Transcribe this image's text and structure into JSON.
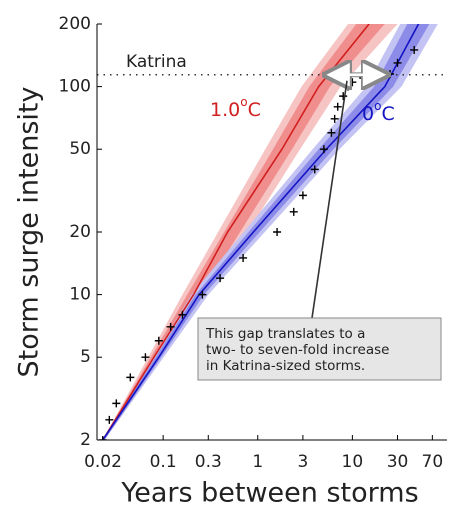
{
  "chart_data": {
    "type": "line",
    "xlabel": "Years between storms",
    "ylabel": "Storm surge intensity",
    "xscale": "log",
    "yscale": "log",
    "xlim": [
      0.02,
      100
    ],
    "ylim": [
      2,
      200
    ],
    "xticks": [
      0.02,
      0.1,
      0.3,
      1,
      3,
      10,
      30,
      70
    ],
    "yticks": [
      2,
      5,
      10,
      20,
      50,
      100,
      200
    ],
    "series": [
      {
        "label_parts": [
          "1.0",
          "o",
          "C"
        ],
        "color": "#d21f1f",
        "y": [
          2,
          3,
          5,
          10,
          20,
          50,
          100,
          200
        ],
        "x": [
          0.023,
          0.04,
          0.08,
          0.21,
          0.48,
          1.8,
          4.4,
          15
        ]
      },
      {
        "label_parts": [
          "0",
          "o",
          "C"
        ],
        "color": "#1414c4",
        "y": [
          2,
          3,
          5,
          10,
          20,
          50,
          100,
          200
        ],
        "x": [
          0.023,
          0.042,
          0.09,
          0.24,
          0.9,
          5.3,
          22,
          50
        ]
      }
    ],
    "bands": [
      {
        "color": "#f7c4c4",
        "y": [
          2,
          10,
          50,
          100,
          200
        ],
        "x_lower": [
          0.023,
          0.16,
          1.2,
          2.9,
          9
        ],
        "x_upper": [
          0.024,
          0.3,
          2.8,
          7.5,
          30
        ]
      },
      {
        "color": "#f08e8e",
        "y": [
          2,
          10,
          50,
          100,
          200
        ],
        "x_lower": [
          0.023,
          0.18,
          1.45,
          3.5,
          11
        ],
        "x_upper": [
          0.024,
          0.25,
          2.3,
          5.8,
          22
        ]
      },
      {
        "color": "#c4c4f4",
        "y": [
          2,
          10,
          50,
          100,
          200
        ],
        "x_lower": [
          0.023,
          0.2,
          3.8,
          14,
          32
        ],
        "x_upper": [
          0.024,
          0.3,
          7.3,
          33,
          80
        ]
      },
      {
        "color": "#8c8ce8",
        "y": [
          2,
          10,
          50,
          100,
          200
        ],
        "x_lower": [
          0.023,
          0.22,
          4.4,
          17,
          38
        ],
        "x_upper": [
          0.024,
          0.27,
          6.3,
          27,
          65
        ]
      }
    ],
    "observed": {
      "color": "#000000",
      "x": [
        0.023,
        0.027,
        0.032,
        0.045,
        0.065,
        0.09,
        0.12,
        0.16,
        0.26,
        0.4,
        0.7,
        1.6,
        2.4,
        3,
        4,
        5,
        6,
        6.5,
        7,
        8,
        9,
        10,
        13,
        25,
        30,
        45
      ],
      "y": [
        2,
        2.5,
        3,
        4,
        5,
        6,
        7,
        8,
        10,
        12,
        15,
        20,
        25,
        30,
        40,
        50,
        60,
        70,
        80,
        90,
        100,
        105,
        110,
        115,
        130,
        150
      ]
    },
    "katrina": {
      "label": "Katrina",
      "y": 114
    },
    "gap_arrow": {
      "x": [
        5.5,
        22
      ],
      "y": 114,
      "color": "#999999"
    },
    "callout": {
      "lines": [
        "This gap translates to a",
        "two- to seven-fold increase",
        "in Katrina-sized storms."
      ]
    }
  }
}
